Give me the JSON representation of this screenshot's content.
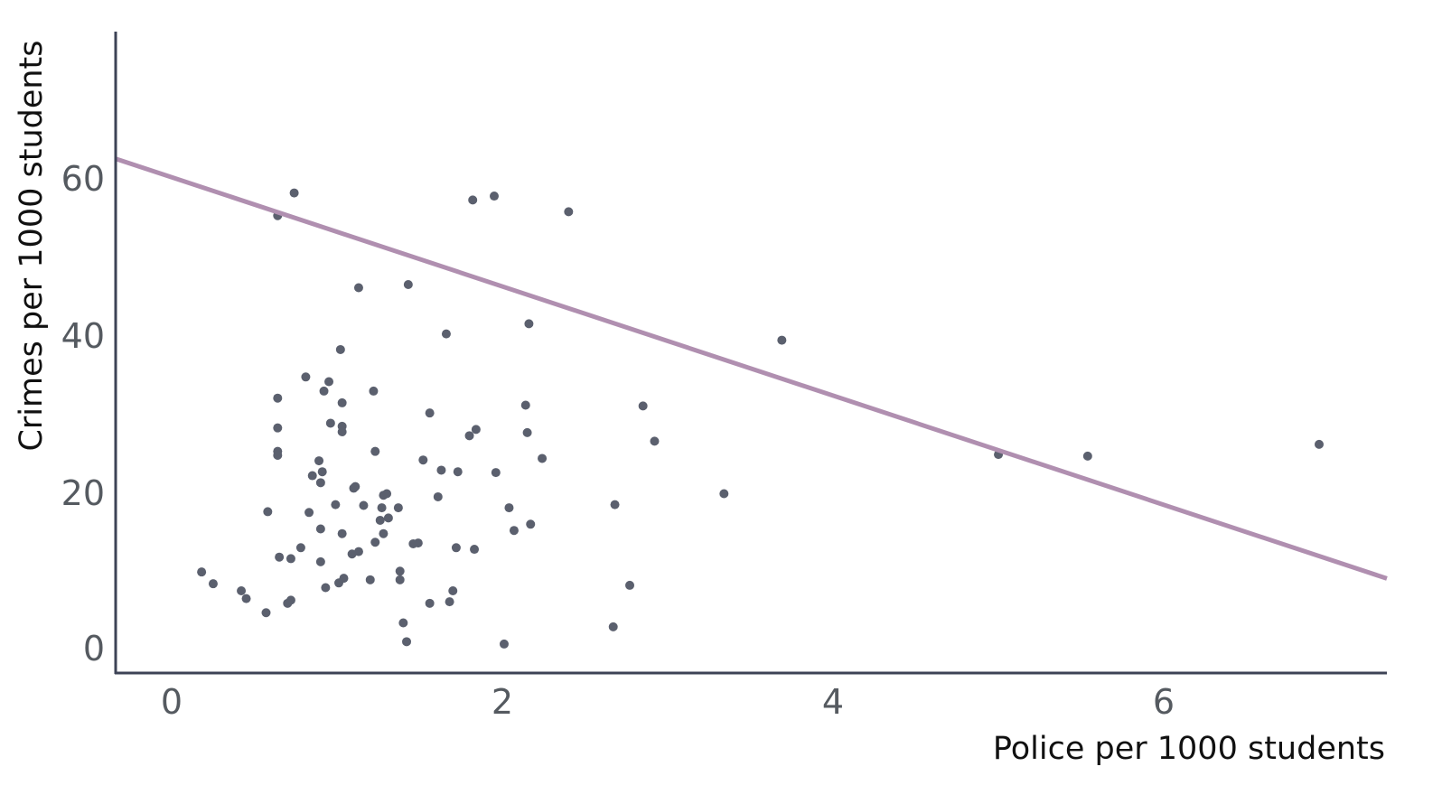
{
  "chart_data": {
    "type": "scatter",
    "title": "",
    "xlabel": "Police per 1000 students",
    "ylabel": "Crimes per 1000 students",
    "xlim": [
      -0.34,
      7.35
    ],
    "ylim": [
      -3.2,
      78.7
    ],
    "xticks": [
      "0",
      "2",
      "4",
      "6"
    ],
    "yticks": [
      "0",
      "20",
      "40",
      "60"
    ],
    "grid": false,
    "colors": {
      "points": "#5b606e",
      "fit_line": "#b08fb0",
      "axis": "#3d4356"
    },
    "fit_line": {
      "intercept": 60.1,
      "slope": -6.97
    },
    "points": [
      [
        0.18,
        9.7
      ],
      [
        0.25,
        8.2
      ],
      [
        0.42,
        7.3
      ],
      [
        0.45,
        6.3
      ],
      [
        0.57,
        4.5
      ],
      [
        0.58,
        17.4
      ],
      [
        0.64,
        55.2
      ],
      [
        0.64,
        31.9
      ],
      [
        0.64,
        28.1
      ],
      [
        0.64,
        25.1
      ],
      [
        0.64,
        24.6
      ],
      [
        0.65,
        11.6
      ],
      [
        0.7,
        5.7
      ],
      [
        0.72,
        6.1
      ],
      [
        0.72,
        11.4
      ],
      [
        0.74,
        58.1
      ],
      [
        0.78,
        12.8
      ],
      [
        0.81,
        34.6
      ],
      [
        0.83,
        17.3
      ],
      [
        0.85,
        22.0
      ],
      [
        0.89,
        23.9
      ],
      [
        0.9,
        15.2
      ],
      [
        0.9,
        11.0
      ],
      [
        0.9,
        21.1
      ],
      [
        0.91,
        22.5
      ],
      [
        0.92,
        32.8
      ],
      [
        0.93,
        7.7
      ],
      [
        0.95,
        34.0
      ],
      [
        0.96,
        28.7
      ],
      [
        0.99,
        18.3
      ],
      [
        1.01,
        8.3
      ],
      [
        1.02,
        38.1
      ],
      [
        1.03,
        27.6
      ],
      [
        1.03,
        28.3
      ],
      [
        1.03,
        14.6
      ],
      [
        1.03,
        31.3
      ],
      [
        1.04,
        8.9
      ],
      [
        1.09,
        12.0
      ],
      [
        1.1,
        20.4
      ],
      [
        1.11,
        20.6
      ],
      [
        1.13,
        46.0
      ],
      [
        1.13,
        12.3
      ],
      [
        1.16,
        18.2
      ],
      [
        1.2,
        8.7
      ],
      [
        1.22,
        32.8
      ],
      [
        1.23,
        25.1
      ],
      [
        1.23,
        13.5
      ],
      [
        1.26,
        16.3
      ],
      [
        1.27,
        17.9
      ],
      [
        1.28,
        19.5
      ],
      [
        1.28,
        14.6
      ],
      [
        1.3,
        19.7
      ],
      [
        1.31,
        16.6
      ],
      [
        1.37,
        17.9
      ],
      [
        1.38,
        9.8
      ],
      [
        1.38,
        8.7
      ],
      [
        1.4,
        3.2
      ],
      [
        1.42,
        0.8
      ],
      [
        1.43,
        46.4
      ],
      [
        1.46,
        13.3
      ],
      [
        1.49,
        13.4
      ],
      [
        1.52,
        24.0
      ],
      [
        1.56,
        30.0
      ],
      [
        1.56,
        5.7
      ],
      [
        1.61,
        19.3
      ],
      [
        1.63,
        22.7
      ],
      [
        1.66,
        40.1
      ],
      [
        1.68,
        5.9
      ],
      [
        1.7,
        7.3
      ],
      [
        1.72,
        12.8
      ],
      [
        1.73,
        22.5
      ],
      [
        1.8,
        27.1
      ],
      [
        1.82,
        57.2
      ],
      [
        1.83,
        12.6
      ],
      [
        1.84,
        27.9
      ],
      [
        1.95,
        57.7
      ],
      [
        1.96,
        22.4
      ],
      [
        2.01,
        0.5
      ],
      [
        2.04,
        17.9
      ],
      [
        2.07,
        15.0
      ],
      [
        2.14,
        31.0
      ],
      [
        2.15,
        27.5
      ],
      [
        2.16,
        41.4
      ],
      [
        2.17,
        15.8
      ],
      [
        2.24,
        24.2
      ],
      [
        2.4,
        55.7
      ],
      [
        2.67,
        2.7
      ],
      [
        2.68,
        18.3
      ],
      [
        2.77,
        8.0
      ],
      [
        2.85,
        30.9
      ],
      [
        2.92,
        26.4
      ],
      [
        3.34,
        19.7
      ],
      [
        3.69,
        39.3
      ],
      [
        5.0,
        24.7
      ],
      [
        5.54,
        24.5
      ],
      [
        6.94,
        26.0
      ]
    ]
  }
}
